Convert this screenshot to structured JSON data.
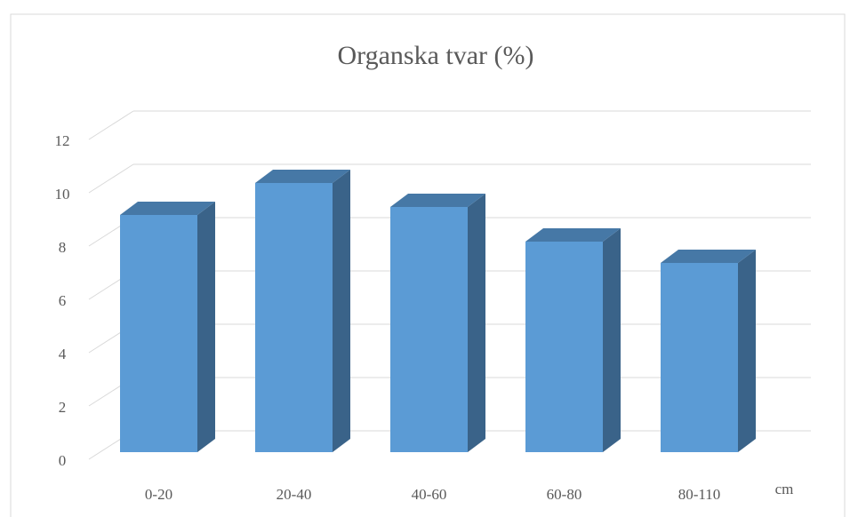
{
  "chart_data": {
    "type": "bar",
    "title": "Organska tvar (%)",
    "x_label": "cm",
    "categories": [
      "0-20",
      "20-40",
      "40-60",
      "60-80",
      "80-110"
    ],
    "values": [
      8.9,
      10.1,
      9.2,
      7.9,
      7.1
    ],
    "color": "#5b9bd5",
    "ylim": [
      0,
      12
    ],
    "yticks": [
      0,
      2,
      4,
      6,
      8,
      10,
      12
    ],
    "grid": true
  }
}
